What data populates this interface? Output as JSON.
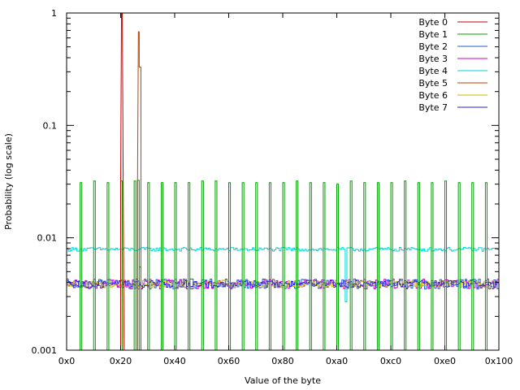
{
  "chart_data": {
    "type": "line",
    "step": true,
    "title": "",
    "xlabel": "Value of the byte",
    "ylabel": "Probability (log scale)",
    "xscale": "linear",
    "yscale": "log",
    "xlim": [
      0,
      256
    ],
    "ylim": [
      0.001,
      1
    ],
    "xticks": [
      {
        "value": 0,
        "label": "0x0"
      },
      {
        "value": 32,
        "label": "0x20"
      },
      {
        "value": 64,
        "label": "0x40"
      },
      {
        "value": 96,
        "label": "0x60"
      },
      {
        "value": 128,
        "label": "0x80"
      },
      {
        "value": 160,
        "label": "0xa0"
      },
      {
        "value": 192,
        "label": "0xc0"
      },
      {
        "value": 224,
        "label": "0xe0"
      },
      {
        "value": 256,
        "label": "0x100"
      }
    ],
    "yticks": [
      {
        "value": 0.001,
        "label": "0.001"
      },
      {
        "value": 0.01,
        "label": "0.01"
      },
      {
        "value": 0.1,
        "label": "0.1"
      },
      {
        "value": 1,
        "label": "1"
      }
    ],
    "grid": false,
    "legend_position": "top-right",
    "series": [
      {
        "name": "Byte 0",
        "color": "#cc0000",
        "points": [
          [
            32,
            0.001
          ],
          [
            32,
            0.03
          ],
          [
            32.5,
            1
          ],
          [
            33,
            1
          ],
          [
            33.5,
            0.03
          ],
          [
            34,
            0.001
          ]
        ]
      },
      {
        "name": "Byte 1",
        "color": "#00a000",
        "baseline": 0.001,
        "spikes": [
          [
            8,
            0.031
          ],
          [
            16,
            0.032
          ],
          [
            24,
            0.031
          ],
          [
            32,
            0.032
          ],
          [
            40,
            0.032
          ],
          [
            48,
            0.031
          ],
          [
            56,
            0.031
          ],
          [
            64,
            0.031
          ],
          [
            72,
            0.031
          ],
          [
            80,
            0.032
          ],
          [
            88,
            0.032
          ],
          [
            96,
            0.031
          ],
          [
            104,
            0.031
          ],
          [
            112,
            0.031
          ],
          [
            120,
            0.031
          ],
          [
            128,
            0.031
          ],
          [
            136,
            0.032
          ],
          [
            144,
            0.031
          ],
          [
            152,
            0.031
          ],
          [
            160,
            0.03
          ],
          [
            168,
            0.032
          ],
          [
            176,
            0.031
          ],
          [
            184,
            0.031
          ],
          [
            192,
            0.031
          ],
          [
            200,
            0.032
          ],
          [
            208,
            0.031
          ],
          [
            216,
            0.031
          ],
          [
            224,
            0.032
          ],
          [
            232,
            0.031
          ],
          [
            240,
            0.031
          ],
          [
            248,
            0.031
          ],
          [
            42,
            0.0325
          ],
          [
            43,
            0.0055
          ]
        ]
      },
      {
        "name": "Byte 2",
        "color": "#1e5fd0",
        "level": 0.0039,
        "noise": 0.0004
      },
      {
        "name": "Byte 3",
        "color": "#cc00cc",
        "level": 0.0039,
        "noise": 0.0004
      },
      {
        "name": "Byte 4",
        "color": "#00d4d4",
        "segments": [
          {
            "from": 0,
            "to": 165,
            "level": 0.0079
          },
          {
            "from": 165,
            "to": 166,
            "level": 0.0027
          },
          {
            "from": 166,
            "to": 256,
            "level": 0.0079
          }
        ]
      },
      {
        "name": "Byte 5",
        "color": "#c04000",
        "points": [
          [
            42,
            0.001
          ],
          [
            42,
            0.0325
          ],
          [
            42.5,
            0.68
          ],
          [
            43,
            0.68
          ],
          [
            43,
            0.33
          ],
          [
            44,
            0.33
          ],
          [
            44,
            0.001
          ]
        ]
      },
      {
        "name": "Byte 6",
        "color": "#c8b400",
        "level": 0.0039,
        "noise": 0.0003
      },
      {
        "name": "Byte 7",
        "color": "#2020e0",
        "level": 0.0039,
        "noise": 0.0003
      }
    ]
  }
}
